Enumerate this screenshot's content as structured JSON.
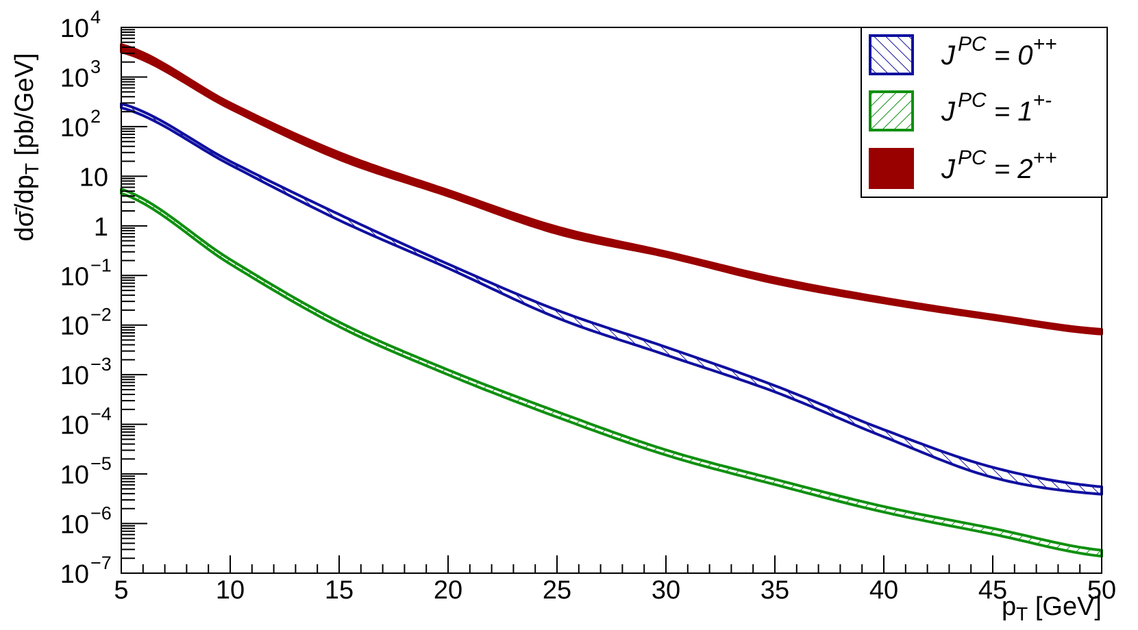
{
  "chart_data": {
    "type": "line",
    "title": "",
    "xlabel": "p_T   [GeV]",
    "ylabel": "dσ̄/dp_T   [pb/GeV]",
    "x_scale": "linear",
    "y_scale": "log",
    "xlim": [
      5,
      50
    ],
    "ylim": [
      1e-07,
      10000
    ],
    "x_ticks": [
      "5",
      "10",
      "15",
      "20",
      "25",
      "30",
      "35",
      "40",
      "45",
      "50"
    ],
    "y_ticks": [
      {
        "base": "10",
        "exp": "4"
      },
      {
        "base": "10",
        "exp": "3"
      },
      {
        "base": "10",
        "exp": "2"
      },
      {
        "base": "10",
        "exp": ""
      },
      {
        "base": "1",
        "exp": ""
      },
      {
        "base": "10",
        "exp": "−1"
      },
      {
        "base": "10",
        "exp": "−2"
      },
      {
        "base": "10",
        "exp": "−3"
      },
      {
        "base": "10",
        "exp": "−4"
      },
      {
        "base": "10",
        "exp": "−5"
      },
      {
        "base": "10",
        "exp": "−6"
      },
      {
        "base": "10",
        "exp": "−7"
      }
    ],
    "legend_position": "top-right",
    "x": [
      5,
      10,
      15,
      20,
      25,
      30,
      35,
      40,
      45,
      50
    ],
    "series": [
      {
        "name": "J^PC = 0^++",
        "legend_label": {
          "sym": "J",
          "sup": "PC",
          "mid": " = 0",
          "sup2": "++"
        },
        "color": "#1010a0",
        "style": "hatch-backslash",
        "upper": [
          290,
          20,
          1.7,
          0.17,
          0.02,
          0.0036,
          0.0006,
          7.8e-05,
          1.36e-05,
          5.5e-06
        ],
        "lower": [
          240,
          17,
          1.3,
          0.14,
          0.014,
          0.0025,
          0.00045,
          5.6e-05,
          8.5e-06,
          3.9e-06
        ]
      },
      {
        "name": "J^PC = 1^+-",
        "legend_label": {
          "sym": "J",
          "sup": "PC",
          "mid": " = 1",
          "sup2": "+-"
        },
        "color": "#109010",
        "style": "hatch-slash",
        "upper": [
          5.5,
          0.21,
          0.0115,
          0.00125,
          0.00018,
          3.05e-05,
          7.8e-06,
          2.2e-06,
          8e-07,
          2.9e-07
        ],
        "lower": [
          4.5,
          0.17,
          0.0093,
          0.001,
          0.00014,
          2.4e-05,
          6.1e-06,
          1.7e-06,
          6.1e-07,
          2.2e-07
        ]
      },
      {
        "name": "J^PC = 2^++",
        "legend_label": {
          "sym": "J",
          "sup": "PC",
          "mid": " = 2",
          "sup2": "++"
        },
        "color": "#990000",
        "style": "solid",
        "upper": [
          4500,
          300,
          30,
          5.2,
          0.95,
          0.3,
          0.09,
          0.035,
          0.016,
          0.0082
        ],
        "lower": [
          3200,
          230,
          22,
          4.0,
          0.7,
          0.24,
          0.07,
          0.028,
          0.013,
          0.0066
        ]
      }
    ]
  }
}
